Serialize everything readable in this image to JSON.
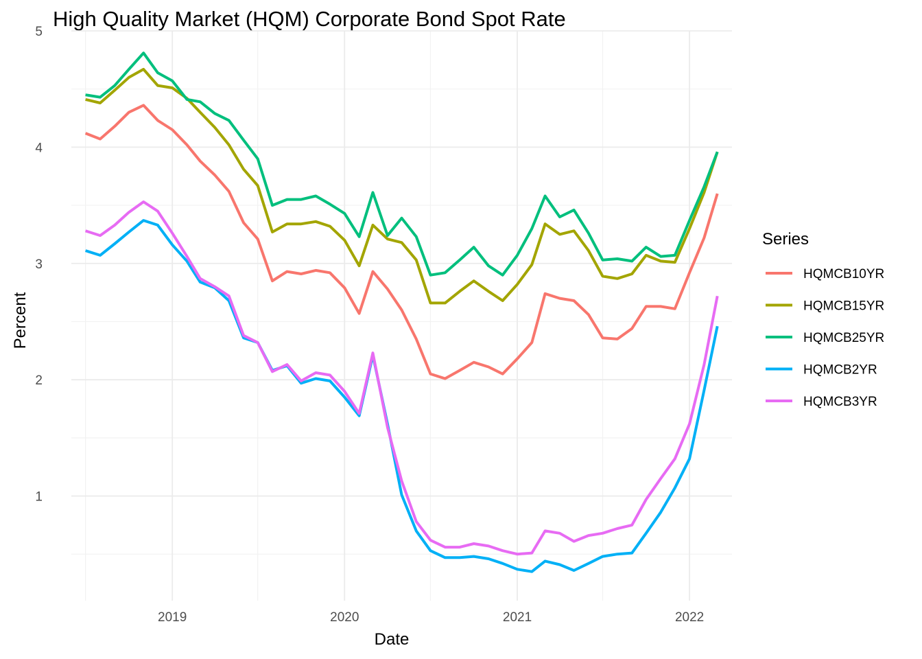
{
  "chart_data": {
    "type": "line",
    "title": "High Quality Market (HQM) Corporate Bond Spot Rate",
    "xlabel": "Date",
    "ylabel": "Percent",
    "x_ticks": [
      "2019",
      "2020",
      "2021",
      "2022"
    ],
    "y_ticks": [
      "1",
      "2",
      "3",
      "4",
      "5"
    ],
    "ylim": [
      0.1,
      5.0
    ],
    "xlim": [
      "2018-06-01",
      "2022-04-01"
    ],
    "grid": true,
    "legend": {
      "title": "Series",
      "placement": "right"
    },
    "x": [
      "2018-07-01",
      "2018-08-01",
      "2018-09-01",
      "2018-10-01",
      "2018-11-01",
      "2018-12-01",
      "2019-01-01",
      "2019-02-01",
      "2019-03-01",
      "2019-04-01",
      "2019-05-01",
      "2019-06-01",
      "2019-07-01",
      "2019-08-01",
      "2019-09-01",
      "2019-10-01",
      "2019-11-01",
      "2019-12-01",
      "2020-01-01",
      "2020-02-01",
      "2020-03-01",
      "2020-04-01",
      "2020-05-01",
      "2020-06-01",
      "2020-07-01",
      "2020-08-01",
      "2020-09-01",
      "2020-10-01",
      "2020-11-01",
      "2020-12-01",
      "2021-01-01",
      "2021-02-01",
      "2021-03-01",
      "2021-04-01",
      "2021-05-01",
      "2021-06-01",
      "2021-07-01",
      "2021-08-01",
      "2021-09-01",
      "2021-10-01",
      "2021-11-01",
      "2021-12-01",
      "2022-01-01",
      "2022-02-01",
      "2022-03-01"
    ],
    "series": [
      {
        "name": "HQMCB10YR",
        "color": "#F8766D",
        "values": [
          4.12,
          4.07,
          4.18,
          4.3,
          4.36,
          4.23,
          4.15,
          4.02,
          3.88,
          3.76,
          3.62,
          3.35,
          3.21,
          2.85,
          2.93,
          2.91,
          2.94,
          2.92,
          2.79,
          2.57,
          2.93,
          2.78,
          2.6,
          2.35,
          2.05,
          2.01,
          2.08,
          2.15,
          2.11,
          2.05,
          2.18,
          2.32,
          2.74,
          2.7,
          2.68,
          2.56,
          2.36,
          2.35,
          2.44,
          2.63,
          2.63,
          2.61,
          2.92,
          3.22,
          3.6
        ]
      },
      {
        "name": "HQMCB15YR",
        "color": "#A3A500",
        "values": [
          4.41,
          4.38,
          4.49,
          4.6,
          4.67,
          4.53,
          4.51,
          4.42,
          4.3,
          4.17,
          4.02,
          3.81,
          3.67,
          3.27,
          3.34,
          3.34,
          3.36,
          3.32,
          3.2,
          2.98,
          3.33,
          3.21,
          3.18,
          3.03,
          2.66,
          2.66,
          2.76,
          2.85,
          2.76,
          2.68,
          2.82,
          2.99,
          3.34,
          3.25,
          3.28,
          3.11,
          2.89,
          2.87,
          2.91,
          3.07,
          3.02,
          3.01,
          3.3,
          3.61,
          3.96
        ]
      },
      {
        "name": "HQMCB25YR",
        "color": "#00BF7D",
        "values": [
          4.45,
          4.43,
          4.53,
          4.67,
          4.81,
          4.64,
          4.57,
          4.41,
          4.39,
          4.29,
          4.23,
          4.06,
          3.9,
          3.5,
          3.55,
          3.55,
          3.58,
          3.51,
          3.43,
          3.23,
          3.61,
          3.24,
          3.39,
          3.23,
          2.9,
          2.92,
          3.03,
          3.14,
          2.98,
          2.9,
          3.07,
          3.3,
          3.58,
          3.4,
          3.46,
          3.26,
          3.03,
          3.04,
          3.02,
          3.14,
          3.06,
          3.07,
          3.37,
          3.66,
          3.96
        ]
      },
      {
        "name": "HQMCB2YR",
        "color": "#00B0F6",
        "values": [
          3.11,
          3.07,
          3.17,
          3.27,
          3.37,
          3.33,
          3.16,
          3.02,
          2.84,
          2.79,
          2.68,
          2.36,
          2.32,
          2.08,
          2.12,
          1.97,
          2.01,
          1.99,
          1.85,
          1.69,
          2.21,
          1.62,
          1.01,
          0.7,
          0.53,
          0.47,
          0.47,
          0.48,
          0.46,
          0.42,
          0.37,
          0.35,
          0.44,
          0.41,
          0.36,
          0.42,
          0.48,
          0.5,
          0.51,
          0.68,
          0.86,
          1.07,
          1.32,
          1.91,
          2.46
        ]
      },
      {
        "name": "HQMCB3YR",
        "color": "#E76BF3",
        "values": [
          3.28,
          3.24,
          3.33,
          3.44,
          3.53,
          3.45,
          3.26,
          3.06,
          2.87,
          2.8,
          2.72,
          2.38,
          2.32,
          2.07,
          2.13,
          1.99,
          2.06,
          2.04,
          1.9,
          1.71,
          2.23,
          1.59,
          1.13,
          0.78,
          0.62,
          0.56,
          0.56,
          0.59,
          0.57,
          0.53,
          0.5,
          0.51,
          0.7,
          0.68,
          0.61,
          0.66,
          0.68,
          0.72,
          0.75,
          0.97,
          1.15,
          1.32,
          1.62,
          2.13,
          2.72
        ]
      }
    ]
  }
}
